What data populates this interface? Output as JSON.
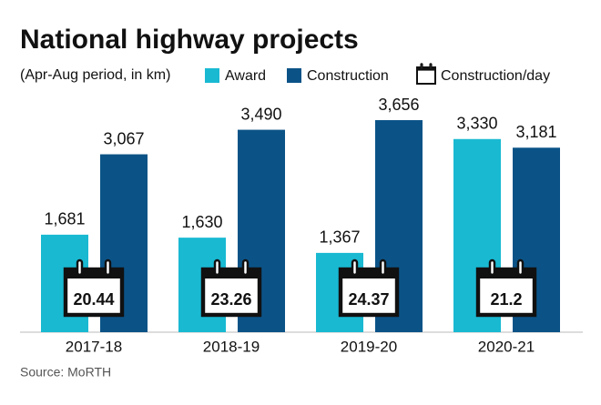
{
  "chart_data": {
    "type": "bar",
    "title": "National highway projects",
    "subtitle": "(Apr-Aug period, in km)",
    "categories": [
      "2017-18",
      "2018-19",
      "2019-20",
      "2020-21"
    ],
    "series": [
      {
        "name": "Award",
        "color": "#19b9d2",
        "values": [
          1681,
          1630,
          1367,
          3330
        ],
        "value_labels": [
          "1,681",
          "1,630",
          "1,367",
          "3,330"
        ]
      },
      {
        "name": "Construction",
        "color": "#0b5387",
        "values": [
          3067,
          3490,
          3656,
          3181
        ],
        "value_labels": [
          "3,067",
          "3,490",
          "3,656",
          "3,181"
        ]
      },
      {
        "name": "Construction/day",
        "color": "#111111",
        "values": [
          20.44,
          23.26,
          24.37,
          21.2
        ]
      }
    ],
    "source": "Source: MoRTH"
  }
}
